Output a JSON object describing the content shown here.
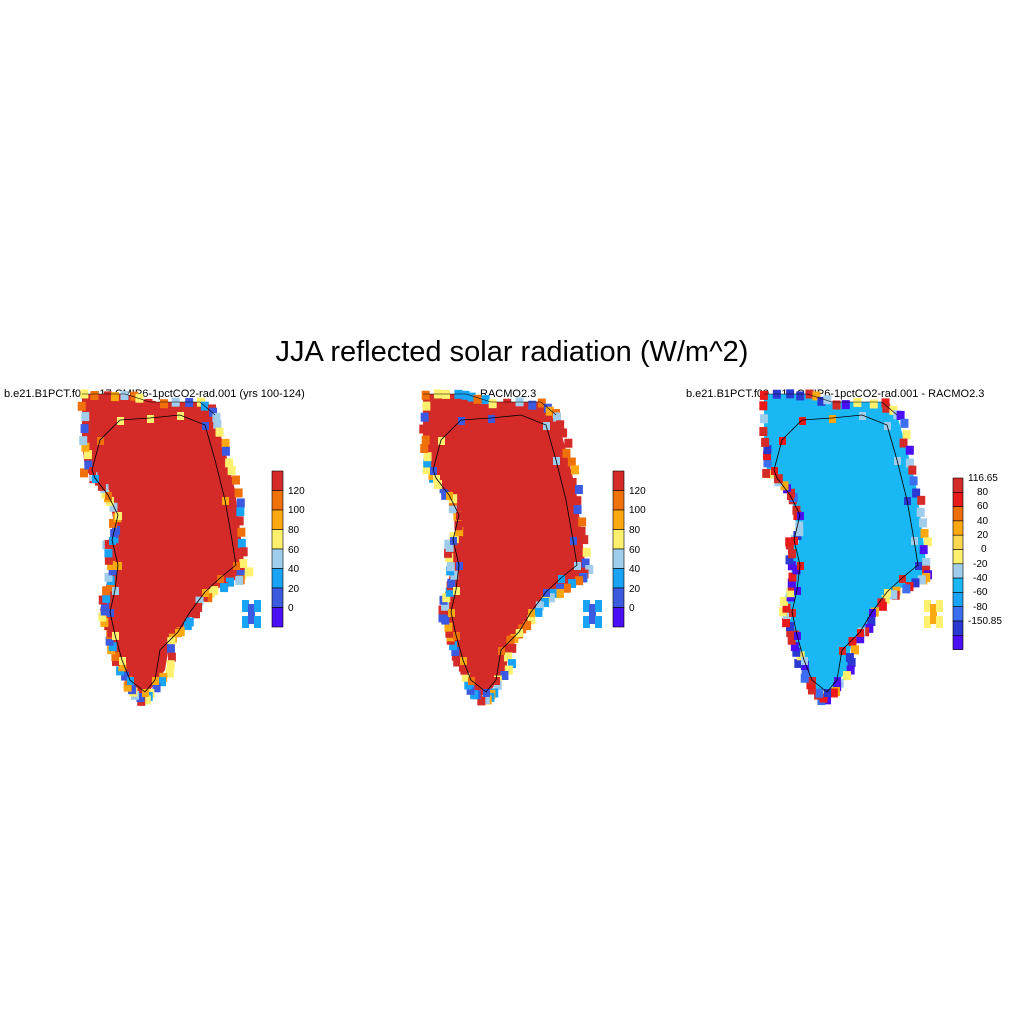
{
  "title": "JJA reflected solar radiation (W/m^2)",
  "panels": [
    {
      "subtitle": "b.e21.B1PCT.f09_g17.CMIP6-1pctCO2-rad.001 (yrs 100-124)",
      "colorbar_labels": [
        "120",
        "100",
        "80",
        "60",
        "40",
        "20",
        "0"
      ]
    },
    {
      "subtitle": "RACMO2.3",
      "colorbar_labels": [
        "120",
        "100",
        "80",
        "60",
        "40",
        "20",
        "0"
      ]
    },
    {
      "subtitle": "b.e21.B1PCT.f09_g17.CMIP6-1pctCO2-rad.001 - RACMO2.3",
      "colorbar_labels": [
        "116.65",
        "80",
        "60",
        "40",
        "20",
        "0",
        "-20",
        "-40",
        "-60",
        "-80",
        "-150.85"
      ]
    }
  ],
  "colors": {
    "abs_scale": [
      "#4a0ff2",
      "#3c5ae0",
      "#19a3f5",
      "#a0cdeb",
      "#fff06e",
      "#fca811",
      "#f0700a",
      "#d52b28"
    ],
    "diff_scale": [
      "#4a0ff2",
      "#2a39d2",
      "#3b6ef0",
      "#19a3f5",
      "#19b8f5",
      "#a0cdeb",
      "#fff06e",
      "#fcd850",
      "#fca811",
      "#f06e0a",
      "#e81a1a",
      "#d52b28"
    ]
  }
}
